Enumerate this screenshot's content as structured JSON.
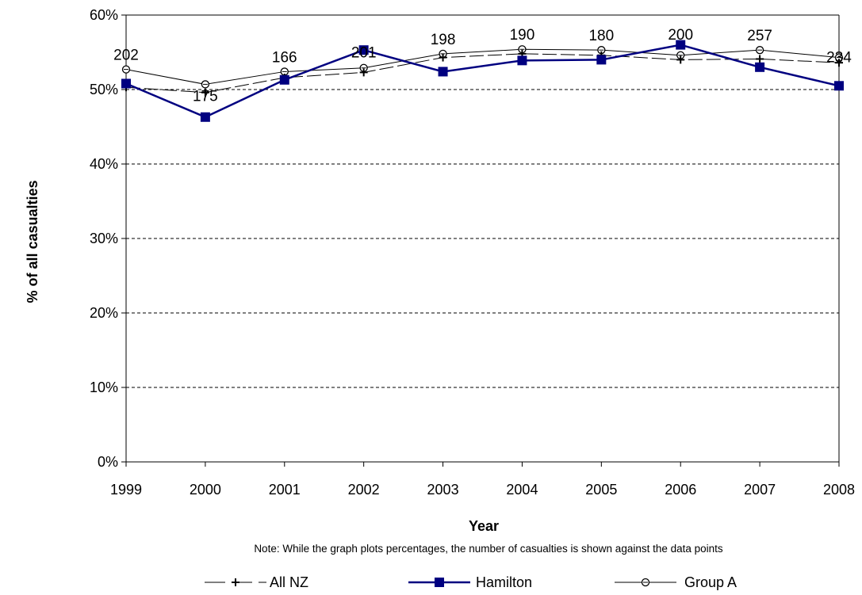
{
  "chart_data": {
    "type": "line",
    "categories": [
      "1999",
      "2000",
      "2001",
      "2002",
      "2003",
      "2004",
      "2005",
      "2006",
      "2007",
      "2008"
    ],
    "ylim": [
      0,
      60
    ],
    "yticks": [
      "0%",
      "10%",
      "20%",
      "30%",
      "40%",
      "50%",
      "60%"
    ],
    "xlabel": "Year",
    "ylabel": "% of all casualties",
    "note": "Note: While the graph plots percentages, the number of casualties is shown  against the data points",
    "grid": "horizontal dashed",
    "legend_position": "bottom",
    "series": [
      {
        "name": "All NZ",
        "values": [
          50.3,
          49.6,
          51.6,
          52.3,
          54.3,
          54.8,
          54.6,
          54.0,
          54.1,
          53.6
        ],
        "color": "#000000",
        "marker": "plus",
        "style": "long-dash"
      },
      {
        "name": "Hamilton",
        "values": [
          50.8,
          46.3,
          51.3,
          55.3,
          52.4,
          53.9,
          54.0,
          56.0,
          53.0,
          50.5
        ],
        "color": "#000080",
        "marker": "square",
        "style": "solid"
      },
      {
        "name": "Group A",
        "values": [
          52.7,
          50.7,
          52.4,
          52.9,
          54.8,
          55.4,
          55.3,
          54.6,
          55.3,
          54.3
        ],
        "color": "#000000",
        "marker": "circle",
        "style": "thin-solid"
      }
    ],
    "data_labels": [
      "202",
      "175",
      "166",
      "201",
      "198",
      "190",
      "180",
      "200",
      "257",
      "234"
    ]
  }
}
